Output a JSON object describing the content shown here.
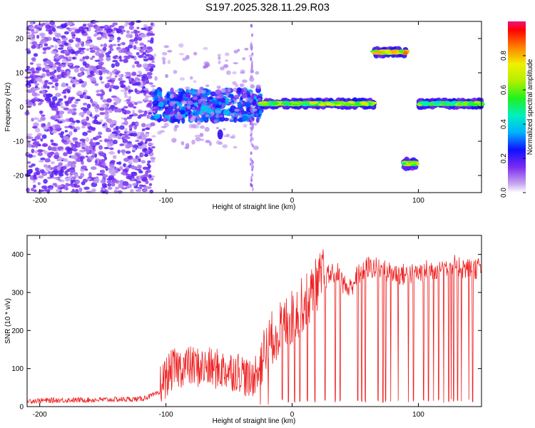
{
  "title": "S197.2025.328.11.29.R03",
  "colors": {
    "snr_line": "#ee2020",
    "frame": "#000000"
  },
  "chart_data": [
    {
      "type": "heatmap",
      "name": "spectrogram",
      "xlabel": "Height of straight line (km)",
      "ylabel": "Frequency (Hz)",
      "xlim": [
        -210,
        150
      ],
      "ylim": [
        -25,
        25
      ],
      "xticks": [
        -200,
        -100,
        0,
        100
      ],
      "yticks": [
        -20,
        -10,
        0,
        10,
        20
      ],
      "colorbar": {
        "label": "Normalized spectral amplitude",
        "range": [
          0,
          1
        ],
        "ticks": [
          "0.0",
          "0.2",
          "0.4",
          "0.6",
          "0.8"
        ],
        "tick_values": [
          0,
          0.2,
          0.4,
          0.6,
          0.8
        ]
      },
      "features": [
        {
          "name": "noise-field",
          "x": [
            -210,
            -110
          ],
          "f": [
            -25,
            25
          ],
          "amp": 0.15
        },
        {
          "name": "turbulent-band",
          "x": [
            -110,
            -25
          ],
          "f": [
            -4,
            5
          ],
          "amp": 0.3
        },
        {
          "name": "carrier-band",
          "x": [
            -25,
            65
          ],
          "f": [
            0,
            2
          ],
          "amp": 0.65
        },
        {
          "name": "upper-tone",
          "x": [
            65,
            90
          ],
          "f": [
            15,
            17
          ],
          "amp": 0.8
        },
        {
          "name": "lower-tone",
          "x": [
            88,
            98
          ],
          "f": [
            -18,
            -15
          ],
          "amp": 0.7
        },
        {
          "name": "carrier-band-2",
          "x": [
            100,
            150
          ],
          "f": [
            0,
            2
          ],
          "amp": 0.6
        }
      ]
    },
    {
      "type": "line",
      "name": "snr",
      "xlabel": "Height of straight line (km)",
      "ylabel": "SNR (10 * v/v)",
      "xlim": [
        -210,
        150
      ],
      "ylim": [
        0,
        450
      ],
      "xticks": [
        -200,
        -100,
        0,
        100
      ],
      "yticks": [
        0,
        100,
        200,
        300,
        400
      ],
      "series": [
        {
          "name": "SNR",
          "x": [
            -210,
            -180,
            -150,
            -120,
            -105,
            -95,
            -85,
            -70,
            -55,
            -40,
            -33,
            -25,
            -20,
            -15,
            -10,
            -5,
            0,
            5,
            10,
            15,
            20,
            25,
            30,
            35,
            40,
            45,
            50,
            55,
            60,
            70,
            80,
            90,
            100,
            110,
            120,
            130,
            140,
            150
          ],
          "values": [
            15,
            17,
            18,
            20,
            35,
            75,
            85,
            80,
            75,
            70,
            40,
            100,
            140,
            170,
            190,
            205,
            220,
            240,
            260,
            280,
            310,
            330,
            340,
            350,
            320,
            300,
            330,
            350,
            360,
            355,
            345,
            340,
            345,
            355,
            360,
            365,
            355,
            360
          ]
        }
      ]
    }
  ]
}
